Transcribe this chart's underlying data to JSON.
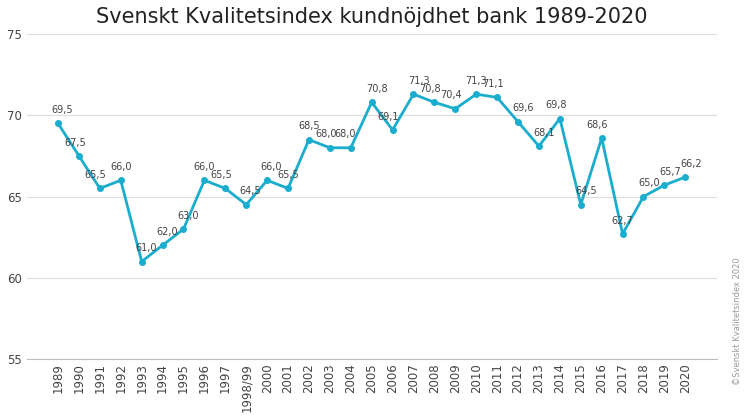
{
  "title": "Svenskt Kvalitetsindex kundnöjdhet bank 1989-2020",
  "x_labels": [
    "1989",
    "1990",
    "1991",
    "1992",
    "1993",
    "1994",
    "1995",
    "1996",
    "1997",
    "1998/99",
    "2000",
    "2001",
    "2002",
    "2003",
    "2004",
    "2005",
    "2006",
    "2007",
    "2008",
    "2009",
    "2010",
    "2011",
    "2012",
    "2013",
    "2014",
    "2015",
    "2016",
    "2017",
    "2018",
    "2019",
    "2020"
  ],
  "y_values": [
    69.5,
    67.5,
    65.5,
    66.0,
    61.0,
    62.0,
    63.0,
    66.0,
    65.5,
    64.5,
    66.0,
    65.5,
    68.5,
    68.0,
    68.0,
    70.8,
    69.1,
    71.3,
    70.8,
    70.4,
    71.3,
    71.1,
    69.6,
    68.1,
    69.8,
    64.5,
    68.6,
    62.7,
    65.0,
    65.7,
    66.2
  ],
  "line_color": "#1AADCE",
  "line_width": 2.0,
  "marker": "o",
  "marker_size": 4,
  "ylim": [
    55,
    75
  ],
  "yticks": [
    55,
    60,
    65,
    70,
    75
  ],
  "copyright_text": "©Svenskt Kvalitetsindex 2020",
  "title_fontsize": 15,
  "label_fontsize": 7.0,
  "axis_fontsize": 8.5,
  "background_color": "#ffffff",
  "label_offsets": [
    7,
    7,
    7,
    7,
    7,
    7,
    7,
    7,
    7,
    7,
    7,
    7,
    7,
    7,
    7,
    7,
    7,
    7,
    7,
    7,
    7,
    7,
    7,
    7,
    7,
    7,
    7,
    7,
    7,
    7,
    7
  ]
}
